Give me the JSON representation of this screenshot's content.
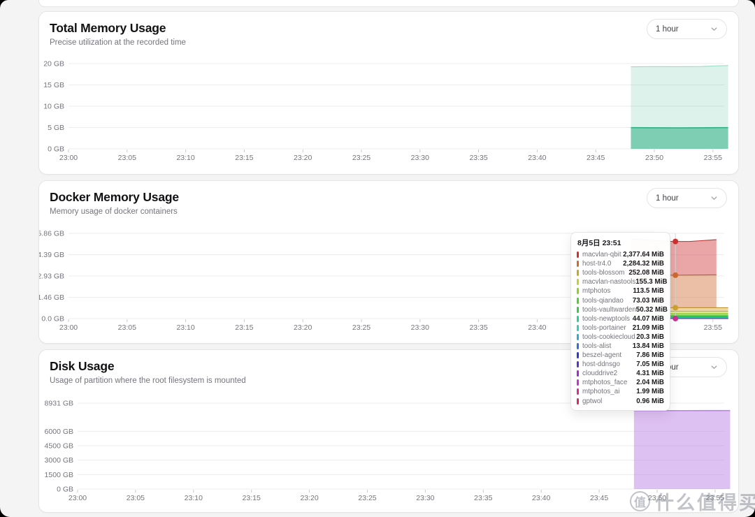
{
  "page": {
    "background": "#f4f4f5"
  },
  "watermark": {
    "logo_char": "值",
    "text": "什么值得买"
  },
  "cards": [
    {
      "title": "Total Memory Usage",
      "subtitle": "Precise utilization at the recorded time",
      "range_label": "1 hour"
    },
    {
      "title": "Docker Memory Usage",
      "subtitle": "Memory usage of docker containers",
      "range_label": "1 hour"
    },
    {
      "title": "Disk Usage",
      "subtitle": "Usage of partition where the root filesystem is mounted",
      "range_label": "1 hour"
    }
  ],
  "tooltip": {
    "date": "8月5日 23:51",
    "rows": [
      {
        "name": "macvlan-qbit",
        "value": "2,377.64 MiB"
      },
      {
        "name": "host-tr4.0",
        "value": "2,284.32 MiB"
      },
      {
        "name": "tools-blossom",
        "value": "252.08 MiB"
      },
      {
        "name": "macvlan-nastools",
        "value": "155.3 MiB"
      },
      {
        "name": "mtphotos",
        "value": "113.5 MiB"
      },
      {
        "name": "tools-qiandao",
        "value": "73.03 MiB"
      },
      {
        "name": "tools-vaultwarden",
        "value": "50.32 MiB"
      },
      {
        "name": "tools-newptools",
        "value": "44.07 MiB"
      },
      {
        "name": "tools-portainer",
        "value": "21.09 MiB"
      },
      {
        "name": "tools-cookiecloud",
        "value": "20.3 MiB"
      },
      {
        "name": "tools-alist",
        "value": "13.84 MiB"
      },
      {
        "name": "beszel-agent",
        "value": "7.86 MiB"
      },
      {
        "name": "host-ddnsgo",
        "value": "7.05 MiB"
      },
      {
        "name": "clouddrive2",
        "value": "4.31 MiB"
      },
      {
        "name": "mtphotos_face",
        "value": "2.04 MiB"
      },
      {
        "name": "mtphotos_ai",
        "value": "1.99 MiB"
      },
      {
        "name": "gptwol",
        "value": "0.96 MiB"
      }
    ]
  },
  "chart_data": [
    {
      "type": "area",
      "title": "Total Memory Usage",
      "ylabel": "GB",
      "ylim": [
        0,
        20
      ],
      "grid": true,
      "yticks": [
        {
          "label": "20 GB",
          "value": 20
        },
        {
          "label": "15 GB",
          "value": 15
        },
        {
          "label": "10 GB",
          "value": 10
        },
        {
          "label": "5 GB",
          "value": 5
        },
        {
          "label": "0 GB",
          "value": 0
        }
      ],
      "xticks": [
        {
          "label": "23:00",
          "minute": 0
        },
        {
          "label": "23:05",
          "minute": 5
        },
        {
          "label": "23:10",
          "minute": 10
        },
        {
          "label": "23:15",
          "minute": 15
        },
        {
          "label": "23:20",
          "minute": 20
        },
        {
          "label": "23:25",
          "minute": 25
        },
        {
          "label": "23:30",
          "minute": 30
        },
        {
          "label": "23:35",
          "minute": 35
        },
        {
          "label": "23:40",
          "minute": 40
        },
        {
          "label": "23:45",
          "minute": 45
        },
        {
          "label": "23:50",
          "minute": 50
        },
        {
          "label": "23:55",
          "minute": 55
        }
      ],
      "series": [
        {
          "name": "total-memory",
          "fill": "rgba(47,177,131,0.17)",
          "stroke": "rgba(47,177,131,0.45)",
          "stroke_width": 1,
          "points": [
            [
              48,
              19.25
            ],
            [
              50,
              19.3
            ],
            [
              52,
              19.28
            ],
            [
              54,
              19.33
            ],
            [
              56.3,
              19.55
            ]
          ]
        },
        {
          "name": "used-memory",
          "fill": "rgba(47,177,131,0.55)",
          "stroke": "#2eb183",
          "stroke_width": 1.6,
          "points": [
            [
              48,
              4.97
            ],
            [
              52,
              4.9
            ],
            [
              56.3,
              4.98
            ]
          ]
        }
      ]
    },
    {
      "type": "stacked-area",
      "title": "Docker Memory Usage",
      "ylabel": "GB",
      "unit": "MiB",
      "ylim": [
        0,
        5.86
      ],
      "grid": true,
      "hover": {
        "minute": 51.8,
        "dot_series": [
          0,
          1,
          2,
          15
        ]
      },
      "yticks": [
        {
          "label": "5.86 GB",
          "value": 5.86
        },
        {
          "label": "4.39 GB",
          "value": 4.39
        },
        {
          "label": "2.93 GB",
          "value": 2.93
        },
        {
          "label": "1.46 GB",
          "value": 1.46
        },
        {
          "label": "0.0 GB",
          "value": 0
        }
      ],
      "xticks": [
        {
          "label": "23:00",
          "minute": 0
        },
        {
          "label": "23:05",
          "minute": 5
        },
        {
          "label": "23:10",
          "minute": 10
        },
        {
          "label": "23:15",
          "minute": 15
        },
        {
          "label": "23:20",
          "minute": 20
        },
        {
          "label": "23:25",
          "minute": 25
        },
        {
          "label": "23:30",
          "minute": 30
        },
        {
          "label": "23:35",
          "minute": 35
        },
        {
          "label": "23:40",
          "minute": 40
        },
        {
          "label": "23:45",
          "minute": 45
        },
        {
          "label": "23:50",
          "minute": 50
        },
        {
          "label": "23:55",
          "minute": 55
        }
      ],
      "series": [
        {
          "name": "macvlan-qbit",
          "mib": 2377.64,
          "hue": 0,
          "end": 55.3,
          "profile": [
            [
              48,
              1.064
            ],
            [
              50,
              1.025
            ],
            [
              51.5,
              1.0
            ],
            [
              53,
              0.995
            ],
            [
              55.3,
              1.042
            ]
          ]
        },
        {
          "name": "host-tr4.0",
          "mib": 2284.32,
          "hue": 22,
          "end": 55.3,
          "profile": [
            [
              48,
              1.01
            ],
            [
              51.5,
              1.0
            ],
            [
              55.3,
              1.012
            ]
          ]
        },
        {
          "name": "tools-blossom",
          "mib": 252.08,
          "hue": 43
        },
        {
          "name": "macvlan-nastools",
          "mib": 155.3,
          "hue": 65
        },
        {
          "name": "mtphotos",
          "mib": 113.5,
          "hue": 86
        },
        {
          "name": "tools-qiandao",
          "mib": 73.03,
          "hue": 108
        },
        {
          "name": "tools-vaultwarden",
          "mib": 50.32,
          "hue": 129
        },
        {
          "name": "tools-newptools",
          "mib": 44.07,
          "hue": 151
        },
        {
          "name": "tools-portainer",
          "mib": 21.09,
          "hue": 172
        },
        {
          "name": "tools-cookiecloud",
          "mib": 20.3,
          "hue": 194
        },
        {
          "name": "tools-alist",
          "mib": 13.84,
          "hue": 215
        },
        {
          "name": "beszel-agent",
          "mib": 7.86,
          "hue": 237
        },
        {
          "name": "host-ddnsgo",
          "mib": 7.05,
          "hue": 258
        },
        {
          "name": "clouddrive2",
          "mib": 4.31,
          "hue": 280
        },
        {
          "name": "mtphotos_face",
          "mib": 2.04,
          "hue": 301
        },
        {
          "name": "mtphotos_ai",
          "mib": 1.99,
          "hue": 323
        },
        {
          "name": "gptwol",
          "mib": 0.96,
          "hue": 345
        }
      ]
    },
    {
      "type": "area",
      "title": "Disk Usage",
      "ylabel": "GB",
      "ylim": [
        0,
        8931
      ],
      "grid": true,
      "yticks": [
        {
          "label": "8931 GB",
          "value": 8931
        },
        {
          "label": "6000 GB",
          "value": 6000
        },
        {
          "label": "4500 GB",
          "value": 4500
        },
        {
          "label": "3000 GB",
          "value": 3000
        },
        {
          "label": "1500 GB",
          "value": 1500
        },
        {
          "label": "0 GB",
          "value": 0
        }
      ],
      "xticks": [
        {
          "label": "23:00",
          "minute": 0
        },
        {
          "label": "23:05",
          "minute": 5
        },
        {
          "label": "23:10",
          "minute": 10
        },
        {
          "label": "23:15",
          "minute": 15
        },
        {
          "label": "23:20",
          "minute": 20
        },
        {
          "label": "23:25",
          "minute": 25
        },
        {
          "label": "23:30",
          "minute": 30
        },
        {
          "label": "23:35",
          "minute": 35
        },
        {
          "label": "23:40",
          "minute": 40
        },
        {
          "label": "23:45",
          "minute": 45
        },
        {
          "label": "23:50",
          "minute": 50
        },
        {
          "label": "23:55",
          "minute": 55
        }
      ],
      "series": [
        {
          "name": "disk-used",
          "fill": "rgba(176,108,226,0.42)",
          "stroke": "rgba(168,96,222,0.75)",
          "stroke_width": 1.6,
          "points": [
            [
              48,
              8150
            ],
            [
              52,
              8150
            ],
            [
              56.3,
              8160
            ]
          ]
        }
      ]
    }
  ]
}
